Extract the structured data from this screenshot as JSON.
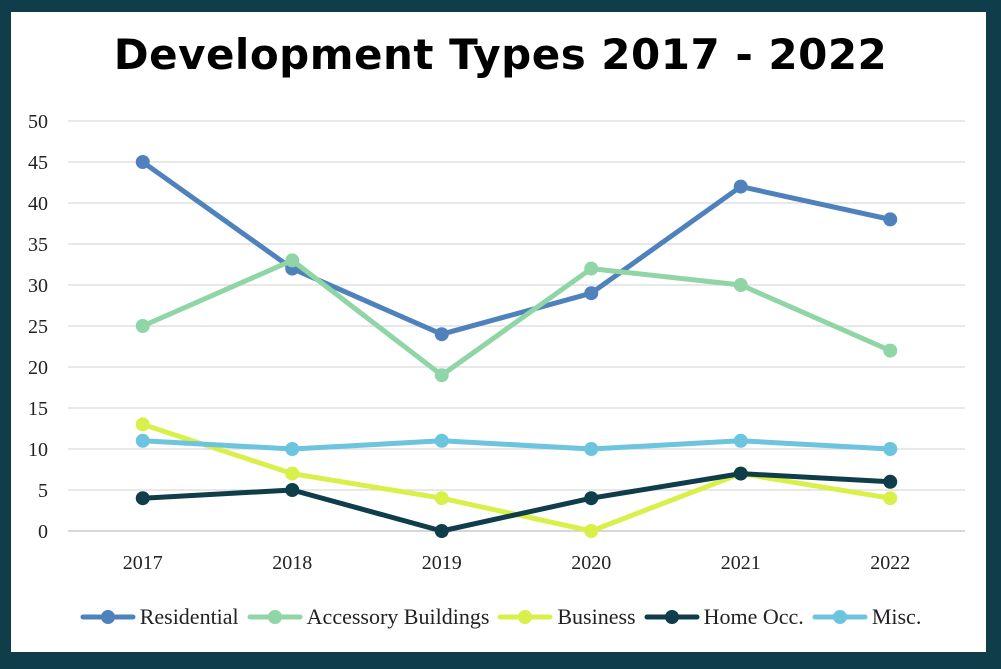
{
  "chart_data": {
    "type": "line",
    "title": "Development Types 2017 - 2022",
    "xlabel": "",
    "ylabel": "",
    "categories": [
      "2017",
      "2018",
      "2019",
      "2020",
      "2021",
      "2022"
    ],
    "ylim": [
      0,
      50
    ],
    "yticks": [
      0,
      5,
      10,
      15,
      20,
      25,
      30,
      35,
      40,
      45,
      50
    ],
    "grid": true,
    "legend_position": "bottom",
    "series": [
      {
        "name": "Residential",
        "color": "#4f81bd",
        "values": [
          45,
          32,
          24,
          29,
          42,
          38
        ]
      },
      {
        "name": "Accessory Buildings",
        "color": "#8fd5a6",
        "values": [
          25,
          33,
          19,
          32,
          30,
          22
        ]
      },
      {
        "name": "Business",
        "color": "#d9f04a",
        "values": [
          13,
          7,
          4,
          0,
          7,
          4
        ]
      },
      {
        "name": "Home Occ.",
        "color": "#0f3d4a",
        "values": [
          4,
          5,
          0,
          4,
          7,
          6
        ]
      },
      {
        "name": "Misc.",
        "color": "#6cc4de",
        "values": [
          11,
          10,
          11,
          10,
          11,
          10
        ]
      }
    ]
  }
}
